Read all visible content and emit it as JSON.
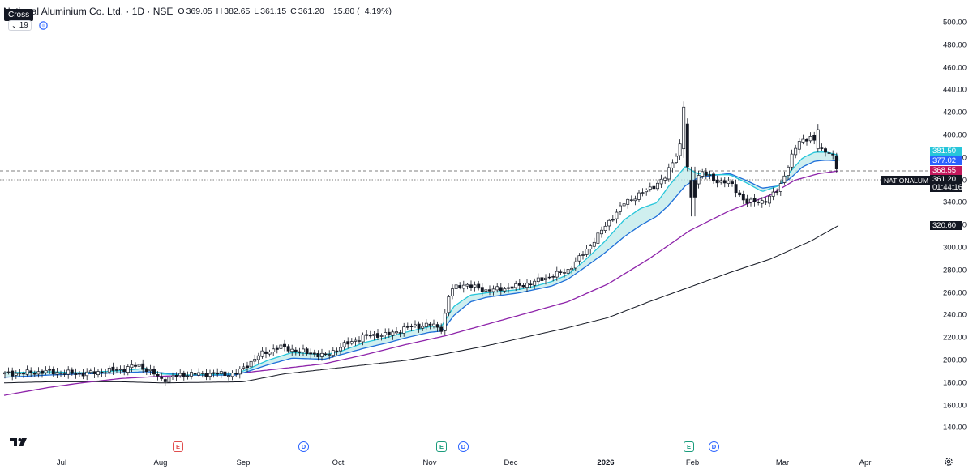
{
  "header": {
    "symbol_title": "National Aluminium Co. Ltd. · 1D · NSE",
    "ohlc": {
      "o_label": "O",
      "o": "369.05",
      "h_label": "H",
      "h": "382.65",
      "l_label": "L",
      "l": "361.15",
      "c_label": "C",
      "c": "361.20",
      "change": "−15.80 (−4.19%)"
    },
    "tooltip": "Cross",
    "indicator_toggle": "19"
  },
  "price_axis": {
    "ticks": [
      "500.00",
      "480.00",
      "460.00",
      "440.00",
      "420.00",
      "400.00",
      "380.00",
      "360.00",
      "340.00",
      "320.00",
      "300.00",
      "280.00",
      "260.00",
      "240.00",
      "220.00",
      "200.00",
      "180.00",
      "160.00",
      "140.00"
    ],
    "tags": [
      {
        "value": "381.50",
        "color": "#26c6da"
      },
      {
        "value": "377.02",
        "color": "#2962ff"
      },
      {
        "value": "368.55",
        "color": "#c2185b"
      },
      {
        "value": "361.20",
        "color": "#131722"
      },
      {
        "value": "01:44:16",
        "color": "#131722"
      },
      {
        "value": "320.60",
        "color": "#131722"
      }
    ],
    "symbol_tag": "NATIONALUM"
  },
  "time_axis": {
    "months": [
      {
        "label": "Jul",
        "year": false
      },
      {
        "label": "Aug",
        "year": false
      },
      {
        "label": "Sep",
        "year": false
      },
      {
        "label": "Oct",
        "year": false
      },
      {
        "label": "Nov",
        "year": false
      },
      {
        "label": "Dec",
        "year": false
      },
      {
        "label": "2026",
        "year": true
      },
      {
        "label": "Feb",
        "year": false
      },
      {
        "label": "Mar",
        "year": false
      },
      {
        "label": "Apr",
        "year": false
      }
    ]
  },
  "events": [
    {
      "type": "earnings",
      "label": "E",
      "color": "red"
    },
    {
      "type": "dividend",
      "label": "D"
    },
    {
      "type": "earnings",
      "label": "E",
      "color": "green"
    },
    {
      "type": "dividend",
      "label": "D"
    },
    {
      "type": "earnings",
      "label": "E",
      "color": "green"
    },
    {
      "type": "dividend",
      "label": "D"
    }
  ],
  "icons": {
    "logo": "tradingview-logo-icon",
    "settings": "gear-icon",
    "indicator_settings": "refresh-icon",
    "collapse": "chevron-down-icon"
  },
  "colors": {
    "up_candle": "#ffffff",
    "down_candle": "#131722",
    "ema_fast": "#26c6da",
    "ema_slow": "#1e6fd9",
    "ma_mid": "#8e24aa",
    "ma_long": "#131722",
    "cloud_fill": "#bfe9ea"
  }
}
